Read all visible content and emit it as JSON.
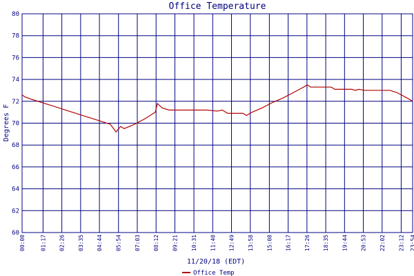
{
  "chart_data": {
    "type": "line",
    "title": "Office Temperature",
    "y_label": "Degrees F",
    "x_label": "11/20/18 (EDT)",
    "x": [
      0,
      10,
      33,
      71,
      122,
      172,
      210,
      248,
      286,
      324,
      345,
      362,
      375,
      413,
      451,
      489,
      497,
      514,
      540,
      628,
      679,
      717,
      735,
      755,
      811,
      824,
      844,
      882,
      920,
      958,
      996,
      1034,
      1047,
      1059,
      1135,
      1148,
      1211,
      1224,
      1237,
      1257,
      1351,
      1376,
      1414,
      1434
    ],
    "series": [
      {
        "name": "Office Temp",
        "color": "#b00000",
        "values": [
          72.6,
          72.4,
          72.2,
          71.9,
          71.5,
          71.1,
          70.8,
          70.5,
          70.2,
          69.9,
          69.2,
          69.7,
          69.5,
          69.9,
          70.4,
          71.0,
          71.8,
          71.4,
          71.2,
          71.2,
          71.2,
          71.1,
          71.2,
          70.9,
          70.9,
          70.7,
          71.0,
          71.4,
          71.9,
          72.3,
          72.8,
          73.3,
          73.5,
          73.3,
          73.3,
          73.1,
          73.1,
          73.0,
          73.1,
          73.0,
          73.0,
          72.8,
          72.3,
          72.0
        ]
      }
    ],
    "xlim": [
      0,
      1434
    ],
    "xticks": [
      {
        "value": 0,
        "label": "00:00"
      },
      {
        "value": 77,
        "label": "01:17"
      },
      {
        "value": 146,
        "label": "02:26"
      },
      {
        "value": 215,
        "label": "03:35"
      },
      {
        "value": 284,
        "label": "04:44"
      },
      {
        "value": 354,
        "label": "05:54"
      },
      {
        "value": 423,
        "label": "07:03"
      },
      {
        "value": 492,
        "label": "08:12"
      },
      {
        "value": 561,
        "label": "09:21"
      },
      {
        "value": 631,
        "label": "10:31"
      },
      {
        "value": 700,
        "label": "11:40"
      },
      {
        "value": 769,
        "label": "12:49"
      },
      {
        "value": 838,
        "label": "13:58"
      },
      {
        "value": 908,
        "label": "15:08"
      },
      {
        "value": 977,
        "label": "16:17"
      },
      {
        "value": 1046,
        "label": "17:26"
      },
      {
        "value": 1115,
        "label": "18:35"
      },
      {
        "value": 1184,
        "label": "19:44"
      },
      {
        "value": 1253,
        "label": "20:53"
      },
      {
        "value": 1322,
        "label": "22:02"
      },
      {
        "value": 1392,
        "label": "23:12"
      },
      {
        "value": 1434,
        "label": "23:54"
      }
    ],
    "ylim": [
      60,
      80
    ],
    "yticks": [
      60,
      62,
      64,
      66,
      68,
      70,
      72,
      74,
      76,
      78,
      80
    ],
    "grid": true
  }
}
